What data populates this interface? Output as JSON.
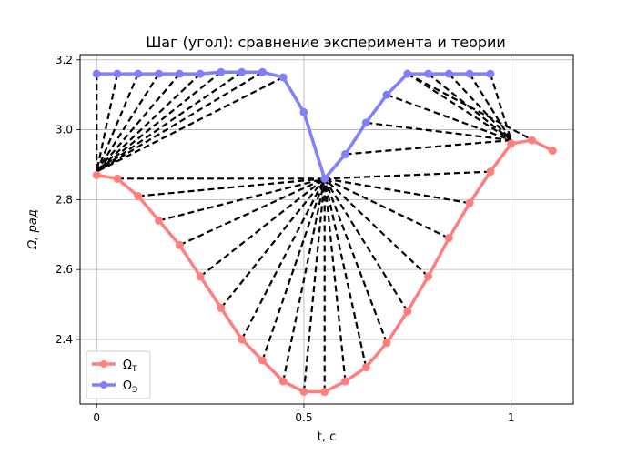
{
  "chart_data": {
    "type": "line",
    "title": "Шаг (угол): сравнение эксперимента и теории",
    "xlabel": "t, c",
    "ylabel": "Ω, рад",
    "xlim": [
      -0.04,
      1.15
    ],
    "ylim": [
      2.215,
      3.215
    ],
    "xticks": [
      0,
      0.5,
      1
    ],
    "xtick_labels": [
      "0",
      "0.5",
      "1"
    ],
    "yticks": [
      2.4,
      2.6,
      2.8,
      3.0,
      3.2
    ],
    "ytick_labels": [
      "2.4",
      "2.6",
      "2.8",
      "3.0",
      "3.2"
    ],
    "grid": true,
    "legend_position": "lower-left",
    "series": [
      {
        "name": "Ω_T",
        "legend_main": "Ω",
        "legend_sub": "T",
        "color": "#ff7f7f",
        "x": [
          0,
          0.05,
          0.1,
          0.15,
          0.2,
          0.25,
          0.3,
          0.35,
          0.4,
          0.45,
          0.5,
          0.55,
          0.6,
          0.65,
          0.7,
          0.75,
          0.8,
          0.85,
          0.9,
          0.95,
          1.0,
          1.05,
          1.1
        ],
        "y": [
          2.87,
          2.86,
          2.81,
          2.74,
          2.67,
          2.58,
          2.49,
          2.4,
          2.34,
          2.28,
          2.25,
          2.25,
          2.28,
          2.32,
          2.39,
          2.48,
          2.58,
          2.69,
          2.79,
          2.88,
          2.96,
          2.97,
          2.94
        ]
      },
      {
        "name": "Ω_Э",
        "legend_main": "Ω",
        "legend_sub": "Э",
        "color": "#7f7fff",
        "x": [
          0,
          0.05,
          0.1,
          0.15,
          0.2,
          0.25,
          0.3,
          0.35,
          0.4,
          0.45,
          0.5,
          0.55,
          0.6,
          0.65,
          0.7,
          0.75,
          0.8,
          0.85,
          0.9,
          0.95
        ],
        "y": [
          3.16,
          3.16,
          3.16,
          3.16,
          3.16,
          3.16,
          3.165,
          3.165,
          3.165,
          3.15,
          3.05,
          2.86,
          2.93,
          3.02,
          3.1,
          3.16,
          3.16,
          3.16,
          3.16,
          3.16
        ]
      }
    ],
    "connectors": [
      {
        "from": [
          0,
          3.16
        ],
        "to": [
          0.0,
          2.88
        ]
      },
      {
        "from": [
          0.05,
          3.16
        ],
        "to": [
          0.0,
          2.88
        ]
      },
      {
        "from": [
          0.1,
          3.16
        ],
        "to": [
          0.0,
          2.88
        ]
      },
      {
        "from": [
          0.15,
          3.16
        ],
        "to": [
          0.0,
          2.88
        ]
      },
      {
        "from": [
          0.2,
          3.16
        ],
        "to": [
          0.0,
          2.88
        ]
      },
      {
        "from": [
          0.25,
          3.16
        ],
        "to": [
          0.0,
          2.88
        ]
      },
      {
        "from": [
          0.3,
          3.165
        ],
        "to": [
          0.0,
          2.88
        ]
      },
      {
        "from": [
          0.35,
          3.165
        ],
        "to": [
          0.0,
          2.88
        ]
      },
      {
        "from": [
          0.4,
          3.165
        ],
        "to": [
          0.0,
          2.88
        ]
      },
      {
        "from": [
          0.45,
          3.15
        ],
        "to": [
          0.0,
          2.88
        ]
      },
      {
        "from": [
          0.05,
          2.86
        ],
        "to": [
          0.55,
          2.86
        ]
      },
      {
        "from": [
          0.1,
          2.81
        ],
        "to": [
          0.55,
          2.86
        ]
      },
      {
        "from": [
          0.15,
          2.74
        ],
        "to": [
          0.55,
          2.86
        ]
      },
      {
        "from": [
          0.2,
          2.67
        ],
        "to": [
          0.55,
          2.86
        ]
      },
      {
        "from": [
          0.25,
          2.58
        ],
        "to": [
          0.55,
          2.86
        ]
      },
      {
        "from": [
          0.3,
          2.49
        ],
        "to": [
          0.55,
          2.86
        ]
      },
      {
        "from": [
          0.35,
          2.4
        ],
        "to": [
          0.55,
          2.86
        ]
      },
      {
        "from": [
          0.4,
          2.34
        ],
        "to": [
          0.55,
          2.86
        ]
      },
      {
        "from": [
          0.45,
          2.28
        ],
        "to": [
          0.55,
          2.86
        ]
      },
      {
        "from": [
          0.5,
          2.25
        ],
        "to": [
          0.55,
          2.86
        ]
      },
      {
        "from": [
          0.55,
          2.25
        ],
        "to": [
          0.55,
          2.86
        ]
      },
      {
        "from": [
          0.6,
          2.28
        ],
        "to": [
          0.55,
          2.86
        ]
      },
      {
        "from": [
          0.65,
          2.32
        ],
        "to": [
          0.55,
          2.86
        ]
      },
      {
        "from": [
          0.7,
          2.39
        ],
        "to": [
          0.55,
          2.86
        ]
      },
      {
        "from": [
          0.75,
          2.48
        ],
        "to": [
          0.55,
          2.86
        ]
      },
      {
        "from": [
          0.8,
          2.58
        ],
        "to": [
          0.55,
          2.86
        ]
      },
      {
        "from": [
          0.85,
          2.69
        ],
        "to": [
          0.55,
          2.86
        ]
      },
      {
        "from": [
          0.9,
          2.79
        ],
        "to": [
          0.55,
          2.86
        ]
      },
      {
        "from": [
          0.95,
          2.88
        ],
        "to": [
          0.55,
          2.86
        ]
      },
      {
        "from": [
          0.5,
          3.05
        ],
        "to": [
          0.55,
          2.86
        ]
      },
      {
        "from": [
          0.6,
          2.93
        ],
        "to": [
          1.0,
          2.97
        ]
      },
      {
        "from": [
          0.65,
          3.02
        ],
        "to": [
          1.0,
          2.97
        ]
      },
      {
        "from": [
          0.7,
          3.1
        ],
        "to": [
          1.0,
          2.97
        ]
      },
      {
        "from": [
          0.75,
          3.16
        ],
        "to": [
          1.0,
          2.97
        ]
      },
      {
        "from": [
          0.8,
          3.16
        ],
        "to": [
          1.0,
          2.97
        ]
      },
      {
        "from": [
          0.85,
          3.16
        ],
        "to": [
          1.0,
          2.97
        ]
      },
      {
        "from": [
          0.9,
          3.16
        ],
        "to": [
          1.0,
          2.97
        ]
      },
      {
        "from": [
          0.95,
          3.16
        ],
        "to": [
          1.0,
          2.97
        ]
      },
      {
        "from": [
          0.75,
          3.16
        ],
        "to": [
          1.1,
          2.94
        ]
      }
    ]
  }
}
